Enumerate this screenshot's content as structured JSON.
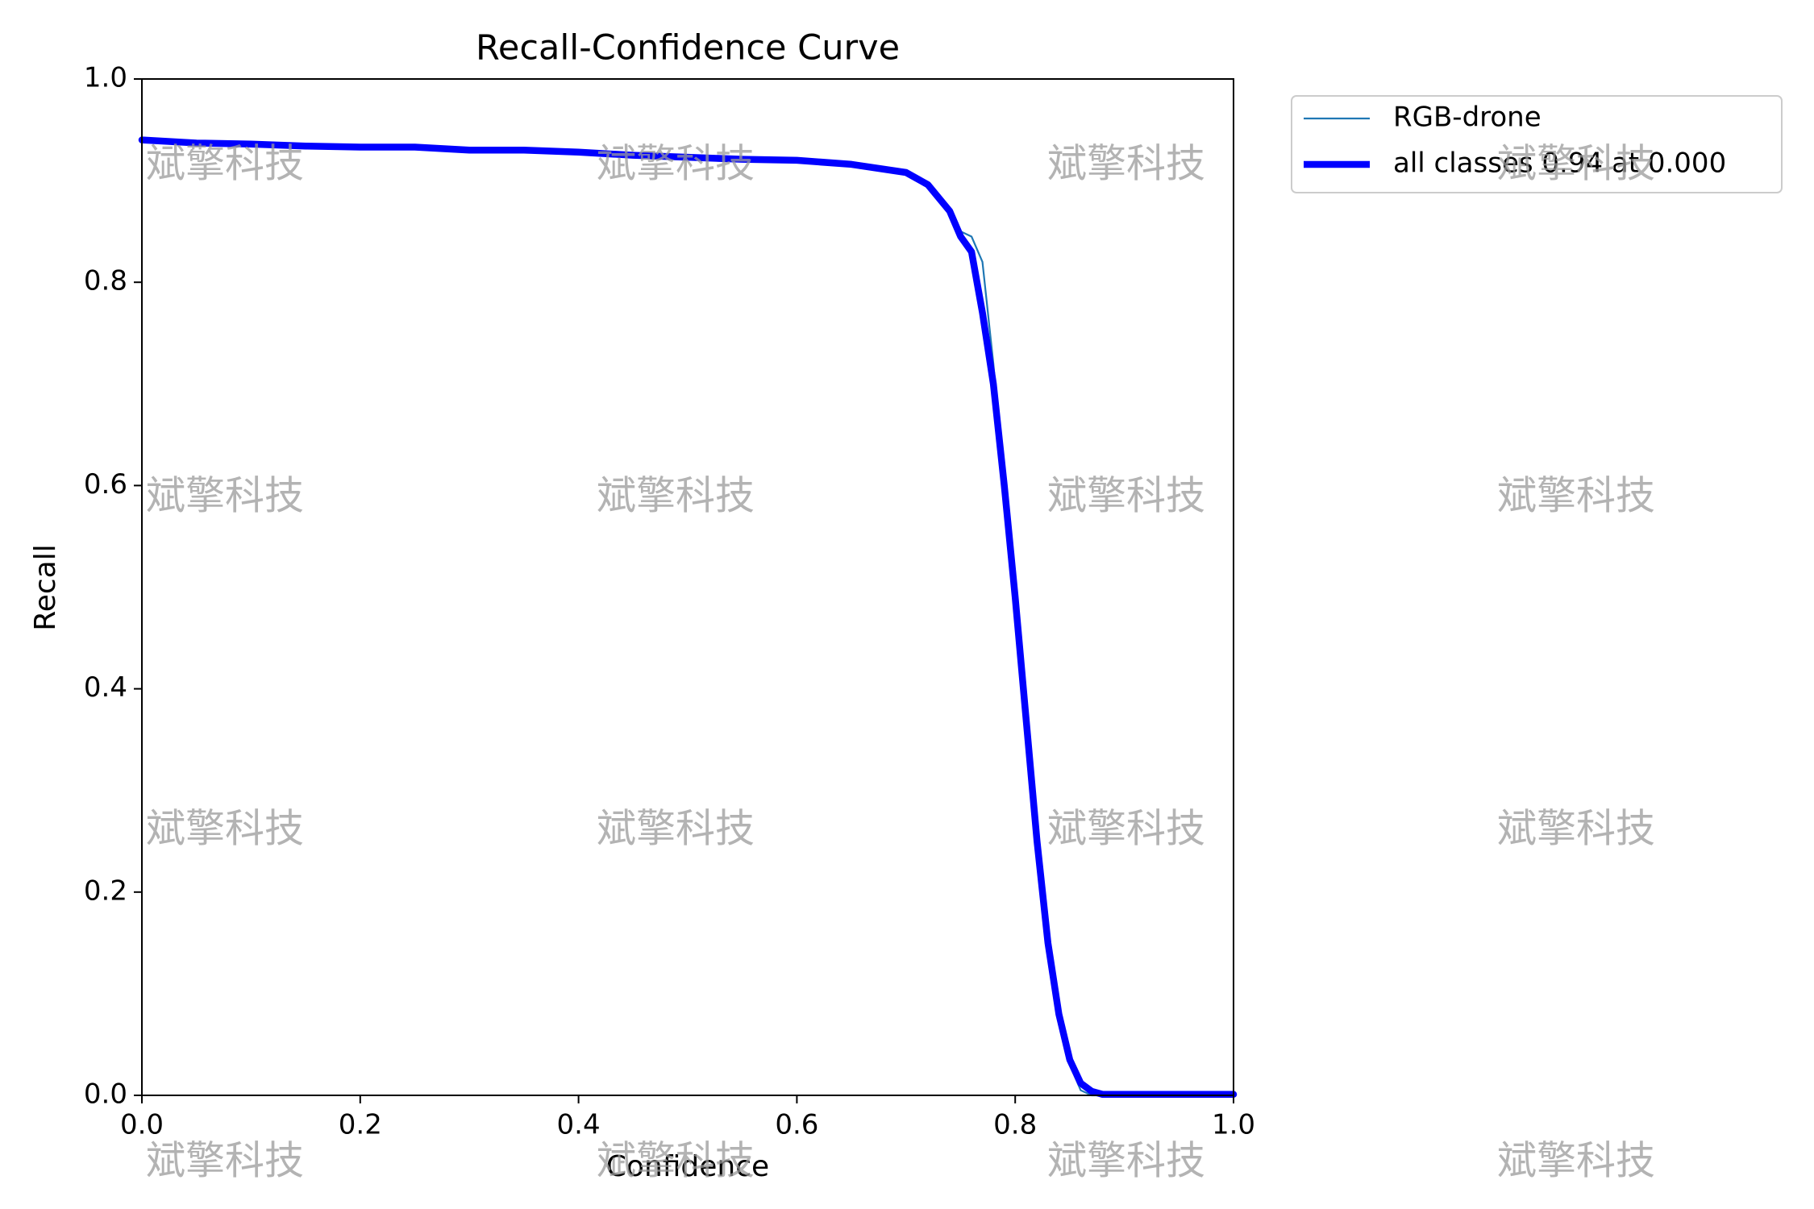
{
  "chart_data": {
    "type": "line",
    "title": "Recall-Confidence Curve",
    "x_label": "Confidence",
    "y_label": "Recall",
    "x": [
      0,
      0.05,
      0.1,
      0.15,
      0.2,
      0.25,
      0.3,
      0.35,
      0.4,
      0.45,
      0.5,
      0.55,
      0.6,
      0.65,
      0.7,
      0.72,
      0.74,
      0.75,
      0.76,
      0.77,
      0.78,
      0.79,
      0.8,
      0.81,
      0.82,
      0.83,
      0.84,
      0.85,
      0.86,
      0.87,
      0.88,
      0.9,
      0.95,
      1.0
    ],
    "series": [
      {
        "name": "RGB-drone",
        "color": "#1f77b4",
        "width": "thin",
        "values": [
          0.94,
          0.937,
          0.936,
          0.934,
          0.933,
          0.933,
          0.93,
          0.93,
          0.928,
          0.925,
          0.923,
          0.921,
          0.92,
          0.916,
          0.908,
          0.898,
          0.872,
          0.85,
          0.845,
          0.82,
          0.72,
          0.6,
          0.49,
          0.37,
          0.25,
          0.14,
          0.07,
          0.03,
          0.005,
          0,
          0,
          0,
          0,
          0
        ]
      },
      {
        "name": "all classes 0.94 at 0.000",
        "color": "#0000ff",
        "width": "thick",
        "values": [
          0.94,
          0.937,
          0.936,
          0.934,
          0.933,
          0.933,
          0.93,
          0.93,
          0.928,
          0.925,
          0.923,
          0.921,
          0.92,
          0.916,
          0.908,
          0.896,
          0.87,
          0.845,
          0.83,
          0.77,
          0.7,
          0.6,
          0.49,
          0.37,
          0.25,
          0.15,
          0.08,
          0.035,
          0.012,
          0.004,
          0.001,
          0.001,
          0.001,
          0.001
        ]
      }
    ],
    "xlim": [
      0,
      1
    ],
    "ylim": [
      0,
      1
    ],
    "xticks": [
      {
        "value": 0,
        "label": "0.0"
      },
      0.2,
      0.4,
      0.6,
      0.8,
      {
        "value": 1,
        "label": "1.0"
      }
    ],
    "yticks": [
      {
        "value": 0,
        "label": "0.0"
      },
      0.2,
      0.4,
      0.6,
      0.8,
      {
        "value": 1,
        "label": "1.0"
      }
    ],
    "grid": false,
    "legend": "outside-right"
  },
  "watermark": "斌擎科技"
}
